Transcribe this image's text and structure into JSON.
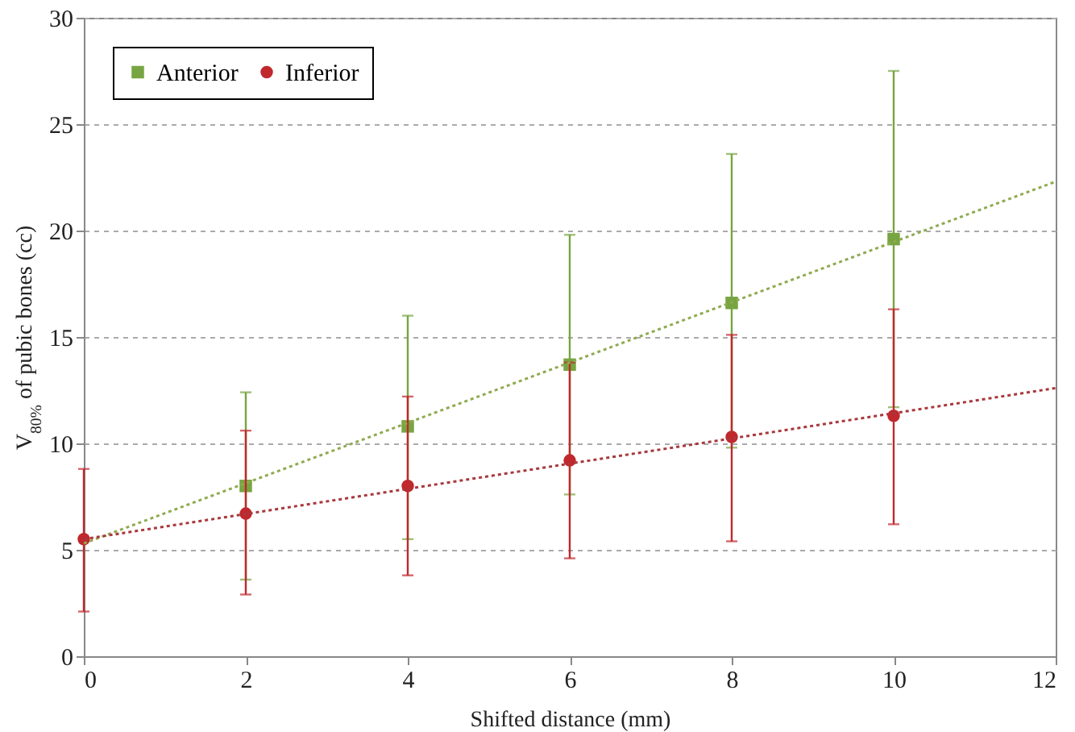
{
  "chart_data": {
    "type": "scatter",
    "xlabel": "Shifted distance (mm)",
    "ylabel": "V$_{80%}$ of pubic bones (cc)",
    "xlim": [
      0,
      12
    ],
    "xticks": [
      0,
      2,
      4,
      6,
      8,
      10,
      12
    ],
    "ylim": [
      0,
      30
    ],
    "yticks": [
      0,
      5,
      10,
      15,
      20,
      25,
      30
    ],
    "grid": "y",
    "legend": "top left",
    "series": [
      {
        "name": "Anterior",
        "type": "scatter",
        "color": "#77a541",
        "marker": "square",
        "x": [
          2,
          4,
          6,
          8,
          10
        ],
        "values": [
          8.0,
          10.8,
          13.7,
          16.6,
          19.6
        ],
        "errors": [
          [
            3.6,
            12.4
          ],
          [
            5.5,
            16.0
          ],
          [
            7.6,
            19.8
          ],
          [
            9.8,
            23.6
          ],
          [
            11.7,
            27.5
          ]
        ]
      },
      {
        "name": "Inferior",
        "type": "scatter",
        "color": "#c0282d",
        "marker": "circle",
        "x": [
          0,
          2,
          4,
          6,
          8,
          10
        ],
        "values": [
          5.5,
          6.7,
          8.0,
          9.2,
          10.3,
          11.3
        ],
        "errors": [
          [
            2.1,
            8.8
          ],
          [
            2.9,
            10.6
          ],
          [
            3.8,
            12.2
          ],
          [
            4.6,
            13.8
          ],
          [
            5.4,
            15.1
          ],
          [
            6.2,
            16.3
          ]
        ]
      },
      {
        "type": "line",
        "color": "#8faa50",
        "line_style": "dotted",
        "x": [
          0,
          12
        ],
        "values": [
          5.3,
          22.3
        ]
      },
      {
        "type": "line",
        "color": "#a8383c",
        "line_style": "dotted",
        "x": [
          0,
          12
        ],
        "values": [
          5.5,
          12.6
        ]
      }
    ]
  }
}
